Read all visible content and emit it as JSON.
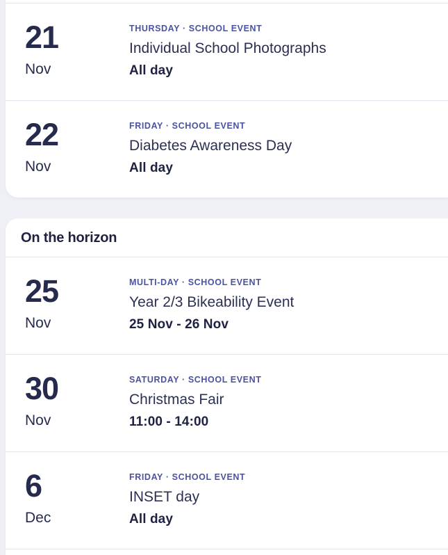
{
  "page": {
    "background_color": "#eff0f6",
    "card_color": "#ffffff",
    "accent_color": "#4a52a2",
    "text_dark": "#1e2142",
    "separator_color": "#e3e5ee"
  },
  "sections": [
    {
      "header": null,
      "events": [
        {
          "day": "21",
          "month": "Nov",
          "meta": "THURSDAY · SCHOOL EVENT",
          "title": "Individual School Photographs",
          "time": "All day"
        },
        {
          "day": "22",
          "month": "Nov",
          "meta": "FRIDAY · SCHOOL EVENT",
          "title": "Diabetes Awareness Day",
          "time": "All day"
        }
      ]
    },
    {
      "header": "On the horizon",
      "events": [
        {
          "day": "25",
          "month": "Nov",
          "meta": "MULTI-DAY · SCHOOL EVENT",
          "title": "Year 2/3 Bikeability Event",
          "time": "25 Nov - 26 Nov"
        },
        {
          "day": "30",
          "month": "Nov",
          "meta": "SATURDAY · SCHOOL EVENT",
          "title": "Christmas Fair",
          "time": "11:00 - 14:00"
        },
        {
          "day": "6",
          "month": "Dec",
          "meta": "FRIDAY · SCHOOL EVENT",
          "title": "INSET day",
          "time": "All day"
        }
      ]
    }
  ]
}
